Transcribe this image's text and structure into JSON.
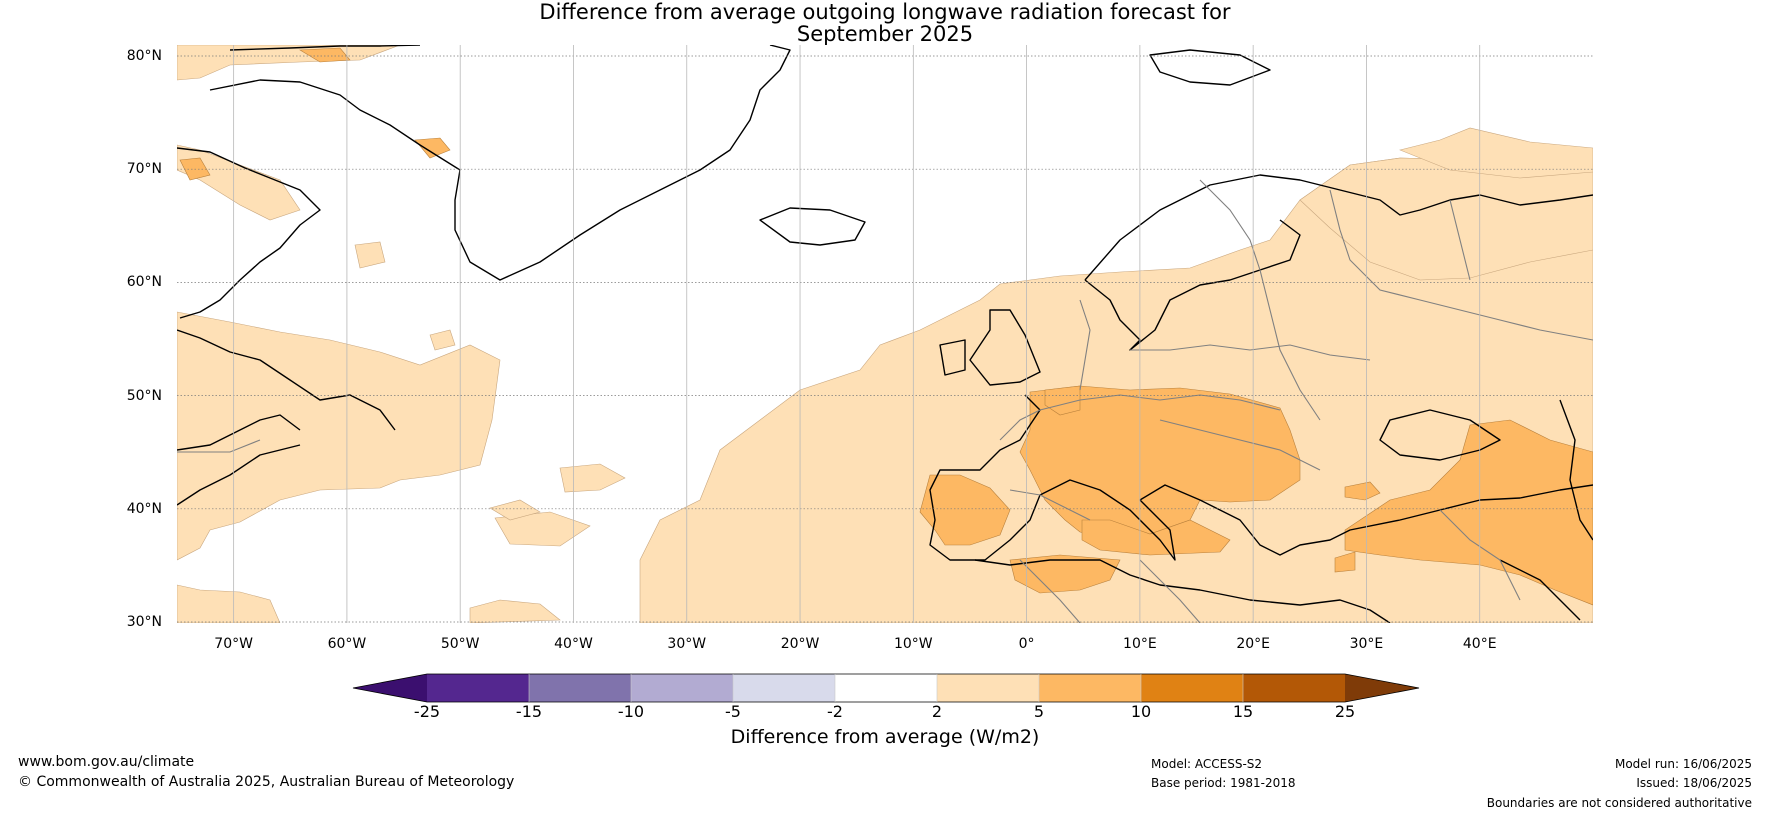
{
  "title": {
    "line1": "Difference from average outgoing longwave radiation forecast for",
    "line2": "September 2025"
  },
  "map": {
    "projection": "equirectangular",
    "lon_range": [
      -75,
      50
    ],
    "lat_range": [
      30,
      81
    ],
    "lat_ticks": [
      {
        "value": 80,
        "label": "80°N"
      },
      {
        "value": 70,
        "label": "70°N"
      },
      {
        "value": 60,
        "label": "60°N"
      },
      {
        "value": 50,
        "label": "50°N"
      },
      {
        "value": 40,
        "label": "40°N"
      },
      {
        "value": 30,
        "label": "30°N"
      }
    ],
    "lon_ticks": [
      {
        "value": -70,
        "label": "70°W"
      },
      {
        "value": -60,
        "label": "60°W"
      },
      {
        "value": -50,
        "label": "50°W"
      },
      {
        "value": -40,
        "label": "40°W"
      },
      {
        "value": -30,
        "label": "30°W"
      },
      {
        "value": -20,
        "label": "20°W"
      },
      {
        "value": -10,
        "label": "10°W"
      },
      {
        "value": 0,
        "label": "0°"
      },
      {
        "value": 10,
        "label": "10°E"
      },
      {
        "value": 20,
        "label": "20°E"
      },
      {
        "value": 30,
        "label": "30°E"
      },
      {
        "value": 40,
        "label": "40°E"
      }
    ]
  },
  "colorbar": {
    "title": "Difference from average (W/m2)",
    "boundaries": [
      "-25",
      "-15",
      "-10",
      "-5",
      "-2",
      "2",
      "5",
      "10",
      "15",
      "25"
    ],
    "boundary_values": [
      -25,
      -15,
      -10,
      -5,
      -2,
      2,
      5,
      10,
      15,
      25
    ],
    "colors": [
      "#3b0f6f",
      "#54278f",
      "#8073ac",
      "#b2abd2",
      "#d8daeb",
      "#ffffff",
      "#fee0b6",
      "#fdb863",
      "#e08214",
      "#b35806",
      "#7f3b08"
    ],
    "extend": "both"
  },
  "footer": {
    "website": "www.bom.gov.au/climate",
    "copyright": "© Commonwealth of Australia 2025, Australian Bureau of Meteorology",
    "model": "Model: ACCESS-S2",
    "base_period": "Base period: 1981-2018",
    "model_run": "Model run: 16/06/2025",
    "issued": "Issued: 18/06/2025",
    "disclaimer": "Boundaries are not considered authoritative"
  }
}
